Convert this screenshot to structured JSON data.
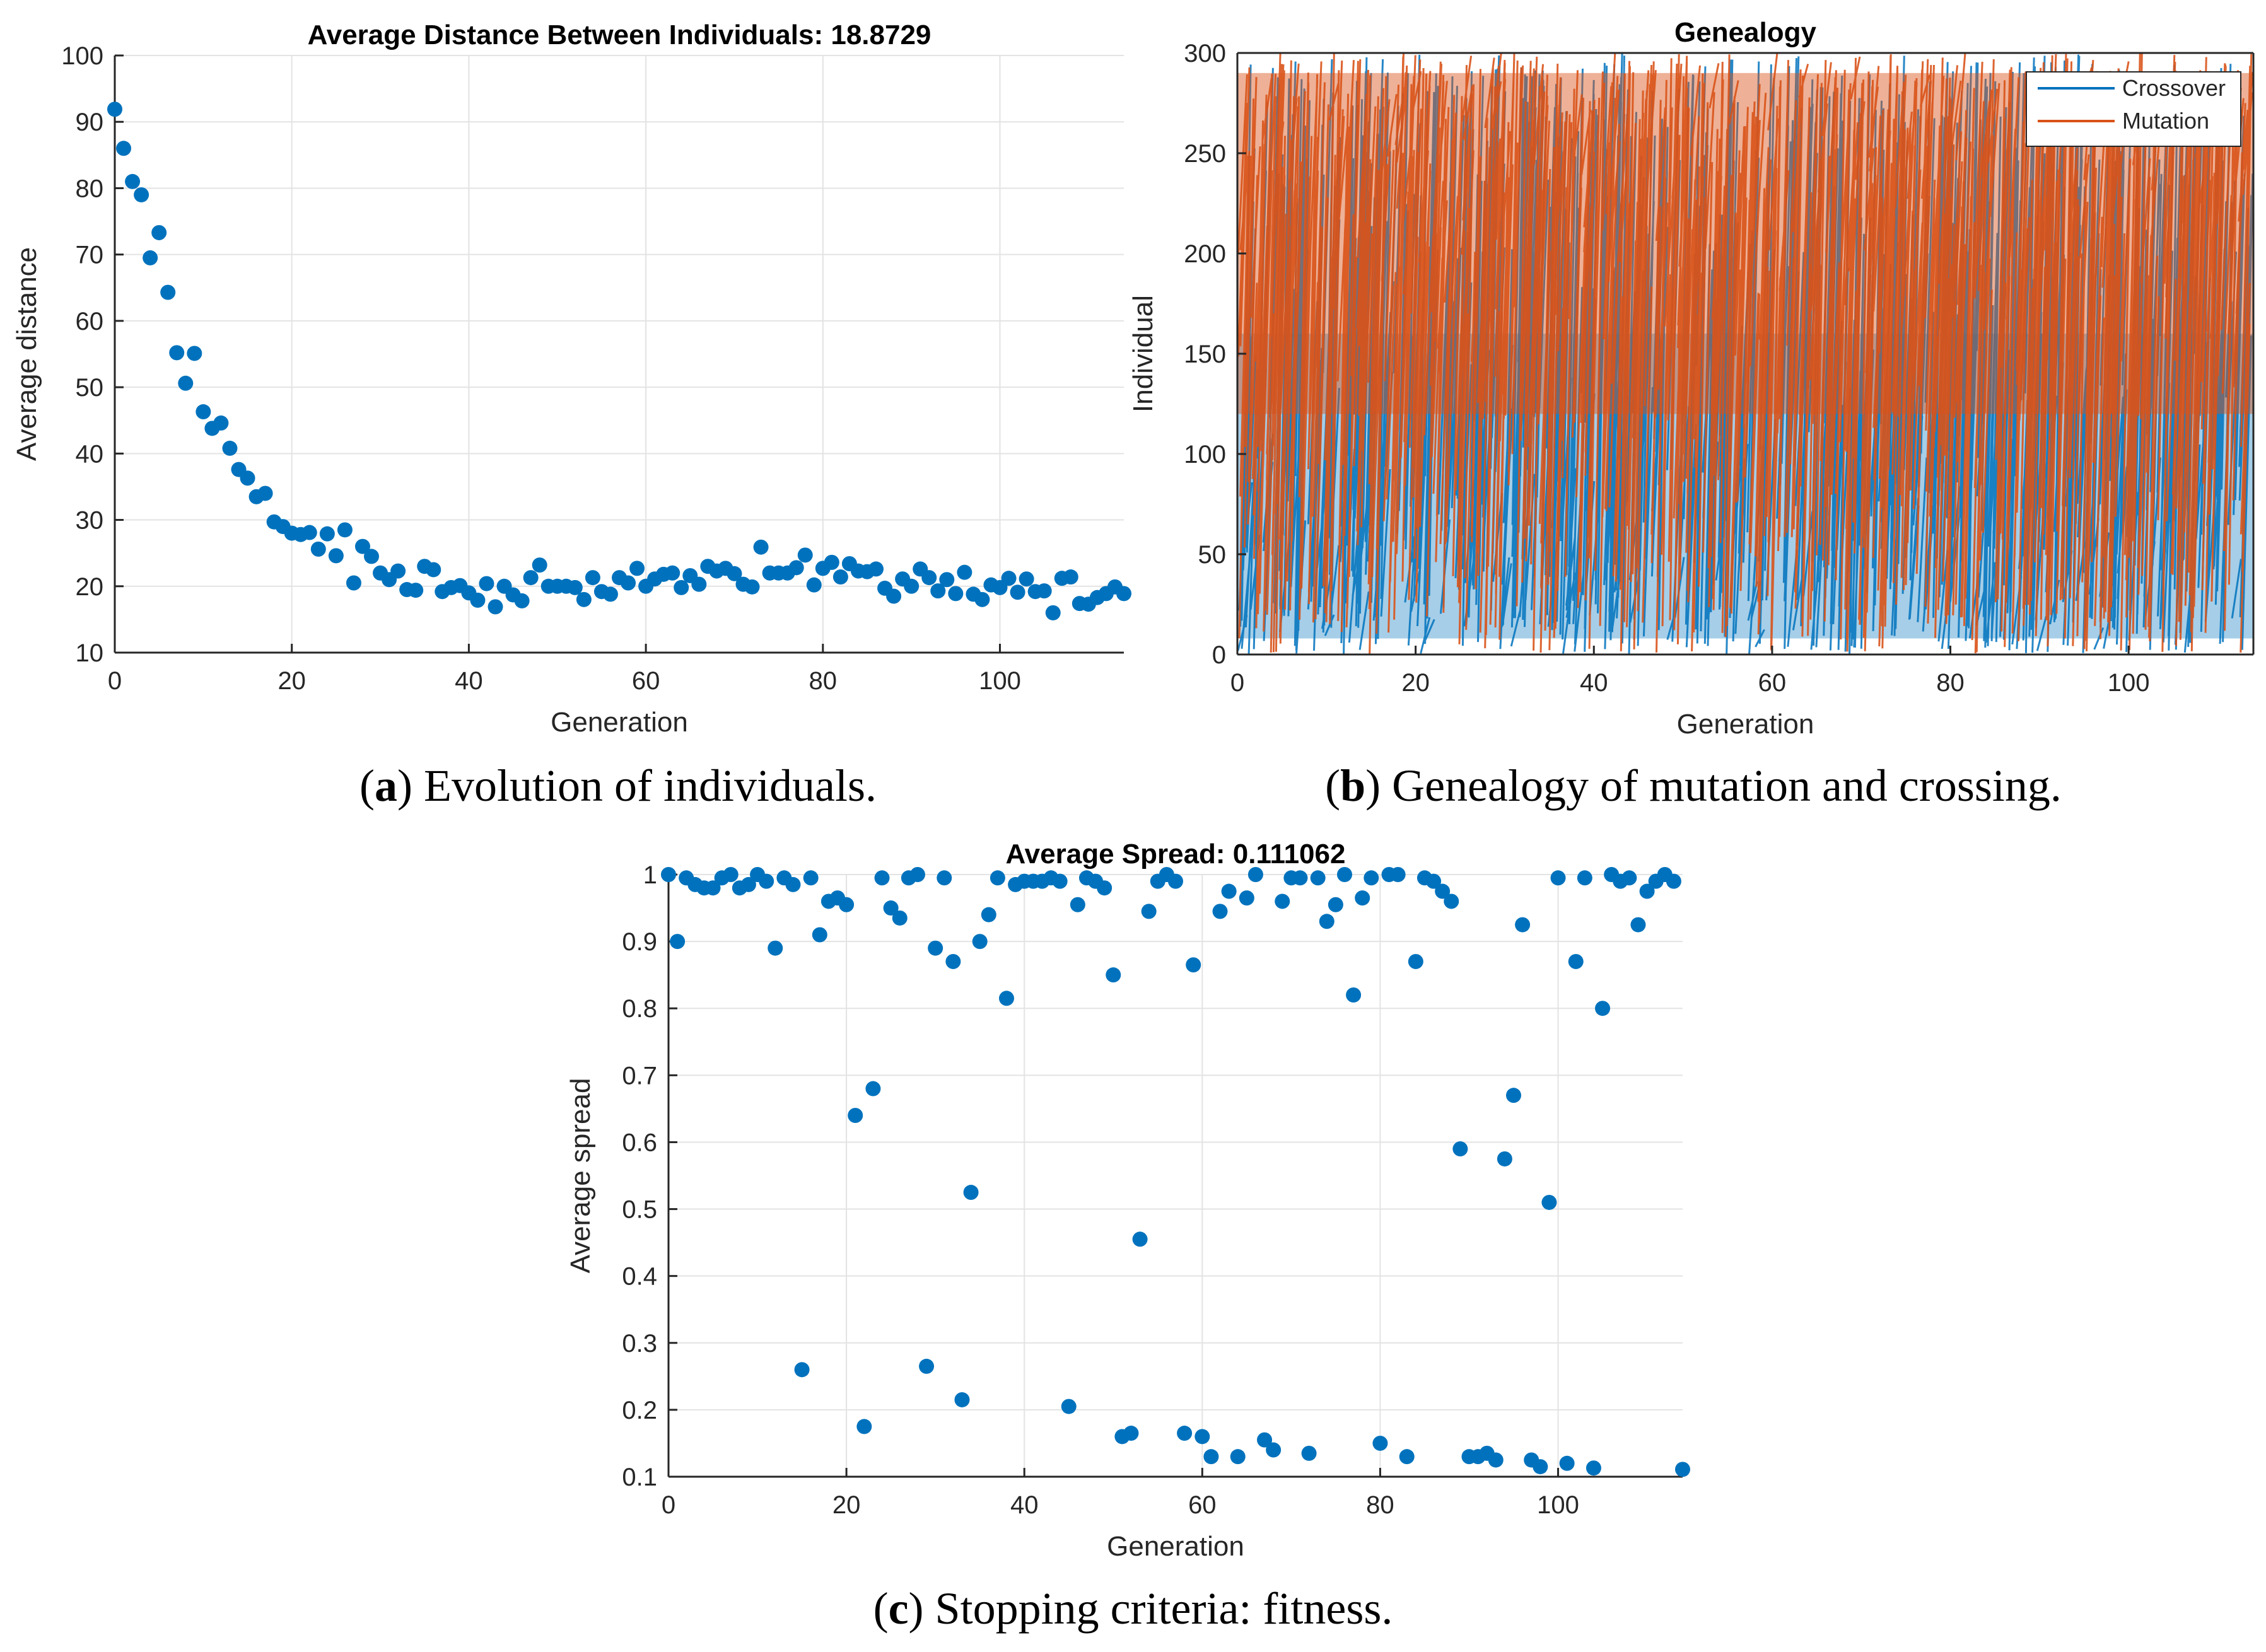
{
  "colors": {
    "blue": "#0072BD",
    "orange": "#D95319",
    "grid": "#e3e3e3",
    "axis": "#262626"
  },
  "captions": {
    "a": {
      "letter": "a",
      "text": " Evolution of individuals."
    },
    "b": {
      "letter": "b",
      "text": " Genealogy of mutation and crossing."
    },
    "c": {
      "letter": "c",
      "text": " Stopping criteria: fitness."
    }
  },
  "chart_data": [
    {
      "id": "a",
      "type": "scatter",
      "title": "Average Distance Between Individuals: 18.8729",
      "xlabel": "Generation",
      "ylabel": "Average distance",
      "xlim": [
        0,
        114
      ],
      "ylim": [
        10,
        100
      ],
      "xticks": [
        0,
        20,
        40,
        60,
        80,
        100
      ],
      "yticks": [
        10,
        20,
        30,
        40,
        50,
        60,
        70,
        80,
        90,
        100
      ],
      "grid": true,
      "x": [
        0,
        1,
        2,
        3,
        4,
        5,
        6,
        7,
        8,
        9,
        10,
        11,
        12,
        13,
        14,
        15,
        16,
        17,
        18,
        19,
        20,
        21,
        22,
        23,
        24,
        25,
        26,
        27,
        28,
        29,
        30,
        31,
        32,
        33,
        34,
        35,
        36,
        37,
        38,
        39,
        40,
        41,
        42,
        43,
        44,
        45,
        46,
        47,
        48,
        49,
        50,
        51,
        52,
        53,
        54,
        55,
        56,
        57,
        58,
        59,
        60,
        61,
        62,
        63,
        64,
        65,
        66,
        67,
        68,
        69,
        70,
        71,
        72,
        73,
        74,
        75,
        76,
        77,
        78,
        79,
        80,
        81,
        82,
        83,
        84,
        85,
        86,
        87,
        88,
        89,
        90,
        91,
        92,
        93,
        94,
        95,
        96,
        97,
        98,
        99,
        100,
        101,
        102,
        103,
        104,
        105,
        106,
        107,
        108,
        109,
        110,
        111,
        112,
        113,
        114
      ],
      "y": [
        91.9,
        86,
        81,
        79,
        69.5,
        73.3,
        64.3,
        55.2,
        50.6,
        55.1,
        46.3,
        43.8,
        44.6,
        40.8,
        37.6,
        36.3,
        33.5,
        34,
        29.7,
        29,
        28,
        27.8,
        28.1,
        25.6,
        27.9,
        24.6,
        28.5,
        20.5,
        26,
        24.5,
        22,
        21,
        22.3,
        19.5,
        19.4,
        23,
        22.5,
        19.2,
        19.8,
        20.1,
        19,
        17.9,
        20.4,
        16.9,
        20,
        18.7,
        17.8,
        21.3,
        23.2,
        20,
        20,
        20,
        19.8,
        18,
        21.3,
        19.2,
        18.8,
        21.3,
        20.5,
        22.7,
        20,
        21.1,
        21.8,
        22,
        19.8,
        21.6,
        20.3,
        23,
        22.3,
        22.7,
        21.9,
        20.3,
        19.9,
        25.9,
        22,
        22,
        22,
        22.8,
        24.7,
        20.2,
        22.7,
        23.6,
        21.4,
        23.4,
        22.3,
        22.2,
        22.6,
        19.7,
        18.5,
        21.1,
        20,
        22.6,
        21.3,
        19.3,
        21,
        18.9,
        22.1,
        18.8,
        18,
        20.2,
        19.8,
        21.2,
        19.1,
        21.1,
        19.2,
        19.3,
        16,
        21.2,
        21.4,
        17.4,
        17.3,
        18.3,
        18.9,
        19.9,
        18.9
      ]
    },
    {
      "id": "b",
      "type": "line",
      "title": "Genealogy",
      "xlabel": "Generation",
      "ylabel": "Individual",
      "xlim": [
        0,
        114
      ],
      "ylim": [
        0,
        300
      ],
      "xticks": [
        0,
        20,
        40,
        60,
        80,
        100
      ],
      "yticks": [
        0,
        50,
        100,
        150,
        200,
        250,
        300
      ],
      "grid": false,
      "legend_position": "top-right",
      "series": [
        {
          "name": "Crossover",
          "color": "#0072BD",
          "range": [
            0,
            150
          ]
        },
        {
          "name": "Mutation",
          "color": "#D95319",
          "range": [
            150,
            300
          ]
        }
      ]
    },
    {
      "id": "c",
      "type": "scatter",
      "title": "Average Spread: 0.111062",
      "xlabel": "Generation",
      "ylabel": "Average spread",
      "xlim": [
        0,
        114
      ],
      "ylim": [
        0.1,
        1
      ],
      "xticks": [
        0,
        20,
        40,
        60,
        80,
        100
      ],
      "yticks": [
        0.1,
        0.2,
        0.3,
        0.4,
        0.5,
        0.6,
        0.7,
        0.8,
        0.9,
        1
      ],
      "ytick_labels": [
        "0.1",
        "0.2",
        "0.3",
        "0.4",
        "0.5",
        "0.6",
        "0.7",
        "0.8",
        "0.9",
        "1"
      ],
      "grid": true,
      "x": [
        0,
        1,
        2,
        3,
        4,
        5,
        6,
        7,
        8,
        9,
        10,
        11,
        12,
        13,
        14,
        15,
        16,
        17,
        18,
        19,
        20,
        21,
        22,
        23,
        24,
        25,
        26,
        27,
        28,
        29,
        30,
        31,
        32,
        33,
        34,
        35,
        36,
        37,
        38,
        39,
        40,
        41,
        42,
        43,
        44,
        45,
        46,
        47,
        48,
        49,
        50,
        51,
        52,
        53,
        54,
        55,
        56,
        57,
        58,
        59,
        60,
        61,
        62,
        63,
        64,
        65,
        66,
        67,
        68,
        69,
        70,
        71,
        72,
        73,
        74,
        75,
        76,
        77,
        78,
        79,
        80,
        81,
        82,
        83,
        84,
        85,
        86,
        87,
        88,
        89,
        90,
        91,
        92,
        93,
        94,
        95,
        96,
        97,
        98,
        99,
        100,
        101,
        102,
        103,
        104,
        105,
        106,
        107,
        108,
        109,
        110,
        111,
        112,
        113,
        114
      ],
      "y": [
        1,
        0.9,
        0.995,
        0.985,
        0.98,
        0.98,
        0.995,
        1,
        0.98,
        0.985,
        1,
        0.99,
        0.89,
        0.995,
        0.985,
        0.26,
        0.995,
        0.91,
        0.96,
        0.965,
        0.955,
        0.64,
        0.175,
        0.68,
        0.995,
        0.95,
        0.935,
        0.995,
        1,
        0.265,
        0.89,
        0.995,
        0.87,
        0.215,
        0.525,
        0.9,
        0.94,
        0.995,
        0.815,
        0.985,
        0.99,
        0.99,
        0.99,
        0.995,
        0.99,
        0.205,
        0.955,
        0.995,
        0.99,
        0.98,
        0.85,
        0.16,
        0.165,
        0.455,
        0.945,
        0.99,
        1,
        0.99,
        0.165,
        0.865,
        0.16,
        0.13,
        0.945,
        0.975,
        0.13,
        0.965,
        1,
        0.155,
        0.14,
        0.96,
        0.995,
        0.995,
        0.135,
        0.995,
        0.93,
        0.955,
        1,
        0.82,
        0.965,
        0.995,
        0.15,
        1,
        1,
        0.13,
        0.87,
        0.995,
        0.99,
        0.975,
        0.96,
        0.59,
        0.13,
        0.13,
        0.135,
        0.125,
        0.575,
        0.67,
        0.925,
        0.125,
        0.115,
        0.51,
        0.995,
        0.12,
        0.87,
        0.995,
        0.113,
        0.8,
        1,
        0.99,
        0.995,
        0.925,
        0.975,
        0.99,
        1,
        0.99,
        0.111
      ]
    }
  ]
}
